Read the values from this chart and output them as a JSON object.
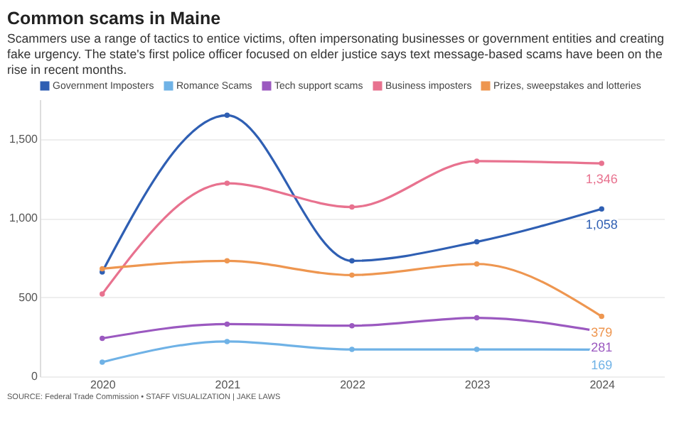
{
  "chart_data": {
    "type": "line",
    "title": "Common scams in Maine",
    "subtitle": "Scammers use a range of tactics to entice victims, often impersonating businesses or government entities and creating fake urgency. The state's first police officer focused on elder justice says text message-based scams have been on the rise in recent months.",
    "annotations": [
      "SOURCE: Federal Trade Commission • STAFF VISUALIZATION | JAKE LAWS"
    ],
    "categories": [
      "2020",
      "2021",
      "2022",
      "2023",
      "2024"
    ],
    "ylim": [
      0,
      1750
    ],
    "yticks": [
      0,
      {
        "value": 500,
        "label": "500"
      },
      {
        "value": 1000,
        "label": "1,000"
      },
      {
        "value": 1500,
        "label": "1,500"
      }
    ],
    "grid": "y",
    "legend": "top left",
    "marker": "circle",
    "line_style": "solid",
    "series": [
      {
        "name": "Government Imposters",
        "color": "#2f5fb3",
        "values": [
          660,
          1650,
          730,
          850,
          1058
        ],
        "value_labels": [
          null,
          null,
          null,
          null,
          "1,058"
        ]
      },
      {
        "name": "Romance Scams",
        "color": "#6fb2e6",
        "values": [
          90,
          220,
          170,
          170,
          169
        ],
        "value_labels": [
          null,
          null,
          null,
          null,
          "169"
        ]
      },
      {
        "name": "Tech support scams",
        "color": "#9b59c0",
        "values": [
          240,
          330,
          320,
          370,
          281
        ],
        "value_labels": [
          null,
          null,
          null,
          null,
          "281"
        ]
      },
      {
        "name": "Business imposters",
        "color": "#e8728f",
        "values": [
          520,
          1220,
          1070,
          1360,
          1346
        ],
        "value_labels": [
          null,
          null,
          null,
          null,
          "1,346"
        ]
      },
      {
        "name": "Prizes, sweepstakes and lotteries",
        "color": "#ee9650",
        "values": [
          680,
          730,
          640,
          710,
          379
        ],
        "value_labels": [
          null,
          null,
          null,
          null,
          "379"
        ]
      }
    ]
  }
}
